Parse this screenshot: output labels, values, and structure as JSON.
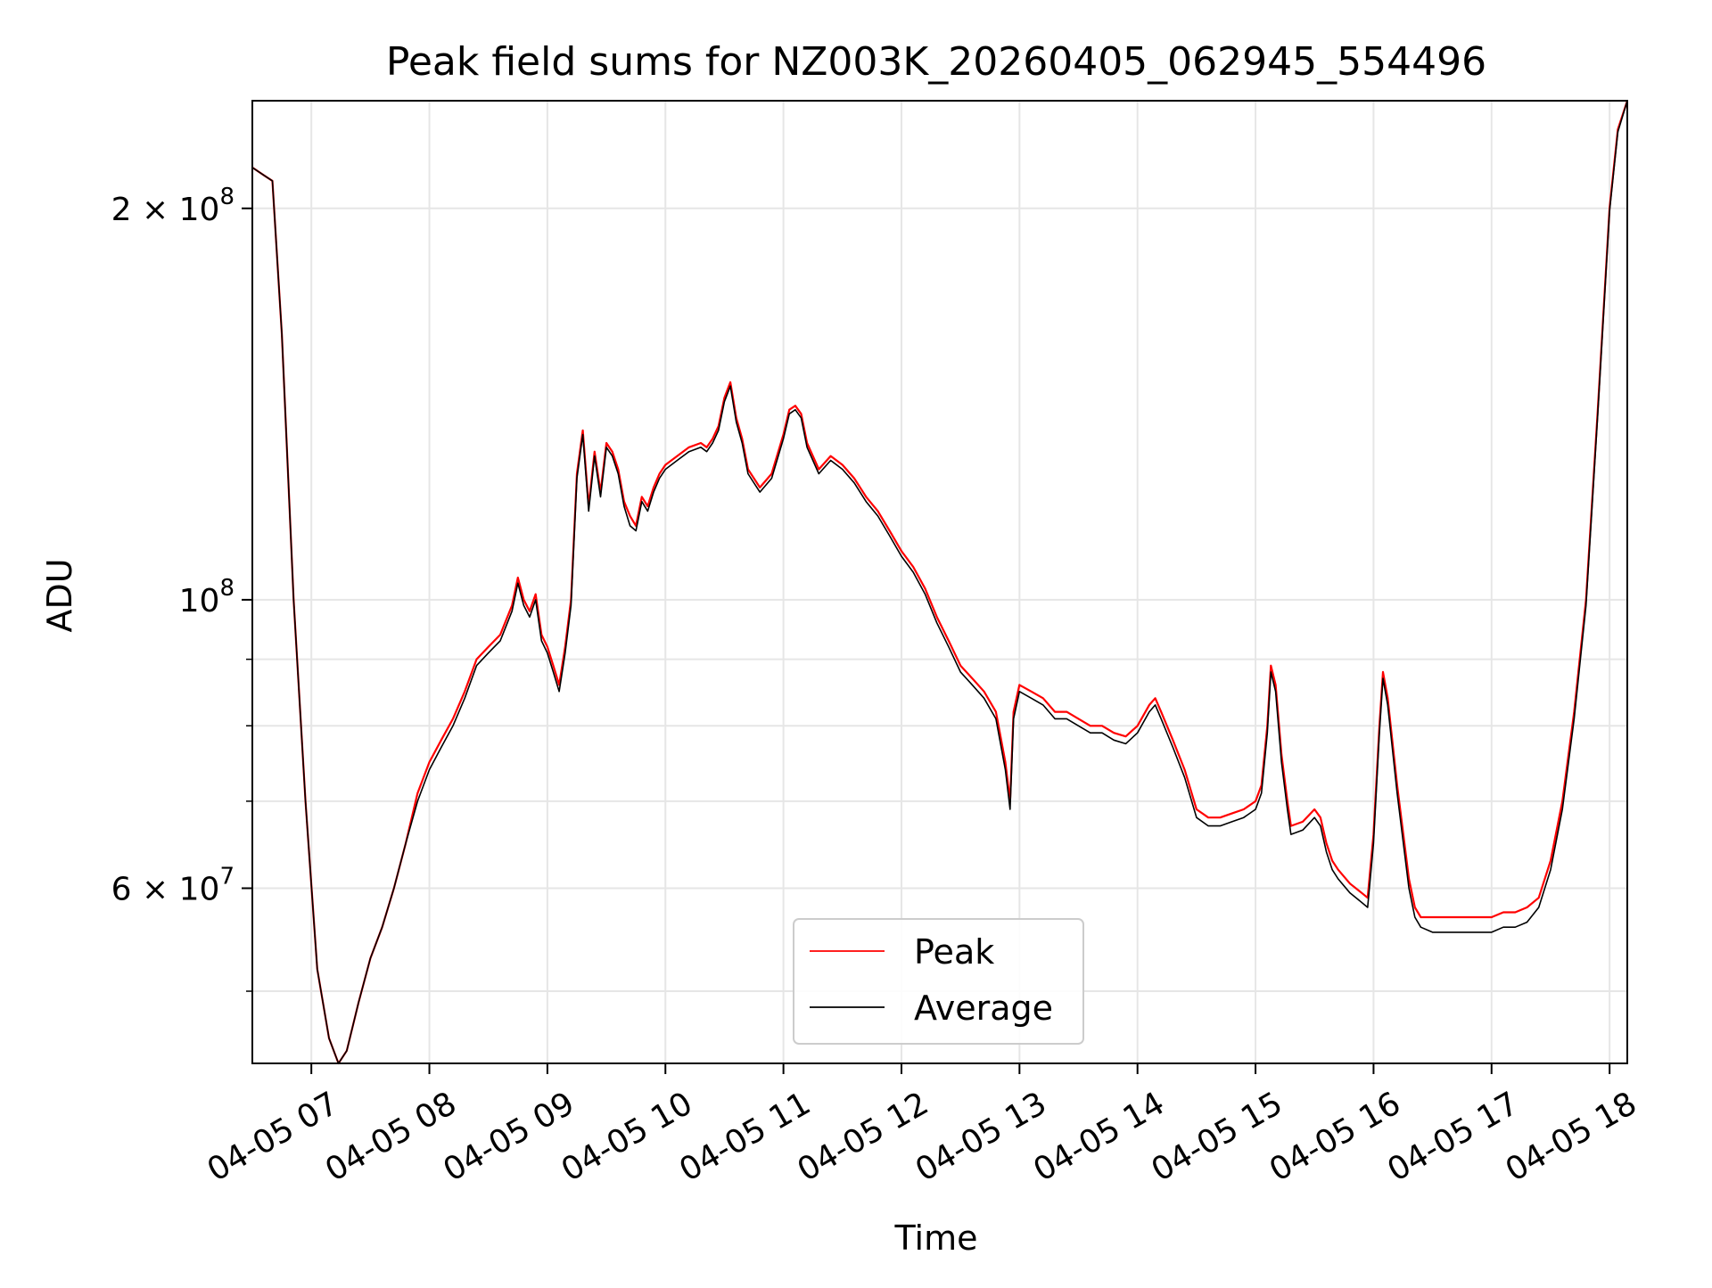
{
  "chart_data": {
    "type": "line",
    "title": "Peak field sums for NZ003K_20260405_062945_554496",
    "xlabel": "Time",
    "ylabel": "ADU",
    "yscale": "log",
    "ylim": [
      44000000,
      242000000
    ],
    "xlim_hours": [
      6.5,
      18.15
    ],
    "grid": true,
    "legend_location": "lower center",
    "x_ticks": [
      {
        "hour": 7,
        "label": "04-05 07"
      },
      {
        "hour": 8,
        "label": "04-05 08"
      },
      {
        "hour": 9,
        "label": "04-05 09"
      },
      {
        "hour": 10,
        "label": "04-05 10"
      },
      {
        "hour": 11,
        "label": "04-05 11"
      },
      {
        "hour": 12,
        "label": "04-05 12"
      },
      {
        "hour": 13,
        "label": "04-05 13"
      },
      {
        "hour": 14,
        "label": "04-05 14"
      },
      {
        "hour": 15,
        "label": "04-05 15"
      },
      {
        "hour": 16,
        "label": "04-05 16"
      },
      {
        "hour": 17,
        "label": "04-05 17"
      },
      {
        "hour": 18,
        "label": "04-05 18"
      }
    ],
    "y_major_ticks": [
      {
        "value": 60000000,
        "mantissa": "6",
        "base": "10",
        "exponent": "7"
      },
      {
        "value": 100000000,
        "mantissa": "",
        "base": "10",
        "exponent": "8"
      },
      {
        "value": 200000000,
        "mantissa": "2",
        "base": "10",
        "exponent": "8"
      }
    ],
    "y_minor_ticks": [
      50000000,
      70000000,
      80000000,
      90000000
    ],
    "series": [
      {
        "name": "Peak",
        "color": "#ff0000",
        "x_hours": [
          6.5,
          6.6,
          6.67,
          6.75,
          6.85,
          6.95,
          7.05,
          7.15,
          7.23,
          7.3,
          7.4,
          7.5,
          7.6,
          7.7,
          7.8,
          7.9,
          8.0,
          8.1,
          8.2,
          8.3,
          8.4,
          8.5,
          8.6,
          8.7,
          8.75,
          8.8,
          8.85,
          8.9,
          8.95,
          9.0,
          9.05,
          9.1,
          9.15,
          9.2,
          9.25,
          9.3,
          9.35,
          9.4,
          9.45,
          9.5,
          9.55,
          9.6,
          9.65,
          9.7,
          9.75,
          9.8,
          9.85,
          9.9,
          9.95,
          10.0,
          10.1,
          10.2,
          10.3,
          10.35,
          10.4,
          10.45,
          10.5,
          10.55,
          10.6,
          10.65,
          10.7,
          10.8,
          10.9,
          11.0,
          11.05,
          11.1,
          11.15,
          11.2,
          11.3,
          11.4,
          11.5,
          11.6,
          11.7,
          11.8,
          11.9,
          12.0,
          12.1,
          12.2,
          12.3,
          12.4,
          12.5,
          12.6,
          12.7,
          12.8,
          12.88,
          12.92,
          12.95,
          13.0,
          13.1,
          13.2,
          13.3,
          13.4,
          13.5,
          13.6,
          13.7,
          13.8,
          13.9,
          14.0,
          14.1,
          14.15,
          14.2,
          14.3,
          14.4,
          14.5,
          14.6,
          14.7,
          14.8,
          14.9,
          15.0,
          15.05,
          15.1,
          15.13,
          15.17,
          15.22,
          15.27,
          15.3,
          15.4,
          15.5,
          15.55,
          15.6,
          15.65,
          15.7,
          15.8,
          15.9,
          15.95,
          16.0,
          16.05,
          16.08,
          16.12,
          16.2,
          16.3,
          16.35,
          16.4,
          16.5,
          16.6,
          16.7,
          16.8,
          16.9,
          17.0,
          17.1,
          17.2,
          17.3,
          17.4,
          17.5,
          17.6,
          17.7,
          17.8,
          17.9,
          18.0,
          18.07,
          18.15
        ],
        "values": [
          215000000,
          212000000,
          210000000,
          160000000,
          100000000,
          70000000,
          52000000,
          46000000,
          44000000,
          45000000,
          49000000,
          53000000,
          56000000,
          60000000,
          65000000,
          71000000,
          75000000,
          78000000,
          81000000,
          85000000,
          90000000,
          92000000,
          94000000,
          99000000,
          104000000,
          100000000,
          98000000,
          101000000,
          94000000,
          92000000,
          89000000,
          86000000,
          92000000,
          100000000,
          125000000,
          135000000,
          118000000,
          130000000,
          121000000,
          132000000,
          130000000,
          126000000,
          119000000,
          116000000,
          114000000,
          120000000,
          118000000,
          122000000,
          125000000,
          127000000,
          129000000,
          131000000,
          132000000,
          131000000,
          133000000,
          136000000,
          143000000,
          147000000,
          138000000,
          133000000,
          126000000,
          122000000,
          125000000,
          134000000,
          140000000,
          141000000,
          139000000,
          132000000,
          126000000,
          129000000,
          127000000,
          124000000,
          120000000,
          117000000,
          113000000,
          109000000,
          106000000,
          102000000,
          97000000,
          93000000,
          89000000,
          87000000,
          85000000,
          82000000,
          75000000,
          70000000,
          82000000,
          86000000,
          85000000,
          84000000,
          82000000,
          82000000,
          81000000,
          80000000,
          80000000,
          79000000,
          78500000,
          80000000,
          83000000,
          84000000,
          82000000,
          78000000,
          74000000,
          69000000,
          68000000,
          68000000,
          68500000,
          69000000,
          70000000,
          72000000,
          80000000,
          89000000,
          86000000,
          76000000,
          70000000,
          67000000,
          67500000,
          69000000,
          68000000,
          65000000,
          63000000,
          62000000,
          60500000,
          59500000,
          59000000,
          66000000,
          80000000,
          88000000,
          84000000,
          72000000,
          61000000,
          58000000,
          57000000,
          57000000,
          57000000,
          57000000,
          57000000,
          57000000,
          57000000,
          57500000,
          57500000,
          58000000,
          59000000,
          63000000,
          70000000,
          82000000,
          100000000,
          140000000,
          200000000,
          230000000,
          242000000
        ]
      },
      {
        "name": "Average",
        "color": "#000000",
        "x_hours": [
          6.5,
          6.6,
          6.67,
          6.75,
          6.85,
          6.95,
          7.05,
          7.15,
          7.23,
          7.3,
          7.4,
          7.5,
          7.6,
          7.7,
          7.8,
          7.9,
          8.0,
          8.1,
          8.2,
          8.3,
          8.4,
          8.5,
          8.6,
          8.7,
          8.75,
          8.8,
          8.85,
          8.9,
          8.95,
          9.0,
          9.05,
          9.1,
          9.15,
          9.2,
          9.25,
          9.3,
          9.35,
          9.4,
          9.45,
          9.5,
          9.55,
          9.6,
          9.65,
          9.7,
          9.75,
          9.8,
          9.85,
          9.9,
          9.95,
          10.0,
          10.1,
          10.2,
          10.3,
          10.35,
          10.4,
          10.45,
          10.5,
          10.55,
          10.6,
          10.65,
          10.7,
          10.8,
          10.9,
          11.0,
          11.05,
          11.1,
          11.15,
          11.2,
          11.3,
          11.4,
          11.5,
          11.6,
          11.7,
          11.8,
          11.9,
          12.0,
          12.1,
          12.2,
          12.3,
          12.4,
          12.5,
          12.6,
          12.7,
          12.8,
          12.88,
          12.92,
          12.95,
          13.0,
          13.1,
          13.2,
          13.3,
          13.4,
          13.5,
          13.6,
          13.7,
          13.8,
          13.9,
          14.0,
          14.1,
          14.15,
          14.2,
          14.3,
          14.4,
          14.5,
          14.6,
          14.7,
          14.8,
          14.9,
          15.0,
          15.05,
          15.1,
          15.13,
          15.17,
          15.22,
          15.27,
          15.3,
          15.4,
          15.5,
          15.55,
          15.6,
          15.65,
          15.7,
          15.8,
          15.9,
          15.95,
          16.0,
          16.05,
          16.08,
          16.12,
          16.2,
          16.3,
          16.35,
          16.4,
          16.5,
          16.6,
          16.7,
          16.8,
          16.9,
          17.0,
          17.1,
          17.2,
          17.3,
          17.4,
          17.5,
          17.6,
          17.7,
          17.8,
          17.9,
          18.0,
          18.07,
          18.15
        ],
        "values": [
          215000000,
          212000000,
          210000000,
          160000000,
          100000000,
          70000000,
          52000000,
          46000000,
          44000000,
          45000000,
          49000000,
          53000000,
          56000000,
          60000000,
          65000000,
          70000000,
          74000000,
          77000000,
          80000000,
          84000000,
          89000000,
          91000000,
          93000000,
          98000000,
          103000000,
          99000000,
          97000000,
          100000000,
          93000000,
          91000000,
          88000000,
          85000000,
          91000000,
          99000000,
          124000000,
          134000000,
          117000000,
          129000000,
          120000000,
          131000000,
          129000000,
          125000000,
          118000000,
          114000000,
          113000000,
          119000000,
          117000000,
          121000000,
          124000000,
          126000000,
          128000000,
          130000000,
          131000000,
          130000000,
          132000000,
          135000000,
          142000000,
          146000000,
          137000000,
          132000000,
          125000000,
          121000000,
          124000000,
          133000000,
          139000000,
          140000000,
          138000000,
          131000000,
          125000000,
          128000000,
          126000000,
          123000000,
          119000000,
          116000000,
          112000000,
          108000000,
          105000000,
          101000000,
          96000000,
          92000000,
          88000000,
          86000000,
          84000000,
          81000000,
          74000000,
          69000000,
          81000000,
          85000000,
          84000000,
          83000000,
          81000000,
          81000000,
          80000000,
          79000000,
          79000000,
          78000000,
          77500000,
          79000000,
          82000000,
          83000000,
          81000000,
          77000000,
          73000000,
          68000000,
          67000000,
          67000000,
          67500000,
          68000000,
          69000000,
          71000000,
          79000000,
          88000000,
          85000000,
          75000000,
          69000000,
          66000000,
          66500000,
          68000000,
          67000000,
          64000000,
          62000000,
          61000000,
          59500000,
          58500000,
          58000000,
          65000000,
          79000000,
          87000000,
          83000000,
          71000000,
          60000000,
          57000000,
          56000000,
          55500000,
          55500000,
          55500000,
          55500000,
          55500000,
          55500000,
          56000000,
          56000000,
          56500000,
          58000000,
          62000000,
          69000000,
          81000000,
          99000000,
          139000000,
          199000000,
          229000000,
          242000000
        ]
      }
    ]
  }
}
